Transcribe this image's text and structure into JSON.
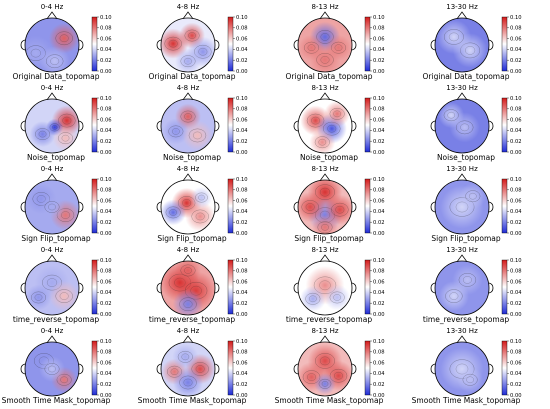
{
  "figure": {
    "bands": [
      "0-4 Hz",
      "4-8 Hz",
      "8-13 Hz",
      "13-30 Hz"
    ],
    "rows": [
      "Original Data_topomap",
      "Noise_topomap",
      "Sign Flip_topomap",
      "time_reverse_topomap",
      "Smooth Time Mask_topomap"
    ],
    "colorbar": {
      "ticks": [
        "0.00",
        "0.02",
        "0.04",
        "0.06",
        "0.08",
        "0.10"
      ],
      "colormap": "bwr",
      "low_color": "#1f2bd6",
      "mid_color": "#ffffff",
      "high_color": "#d41b1b"
    }
  },
  "chart_data": {
    "type": "heatmap",
    "title": "",
    "xlabel": "",
    "ylabel": "",
    "subtype": "eeg-topomap-grid",
    "columns": [
      "0-4 Hz",
      "4-8 Hz",
      "8-13 Hz",
      "13-30 Hz"
    ],
    "rows": [
      "Original Data_topomap",
      "Noise_topomap",
      "Sign Flip_topomap",
      "time_reverse_topomap",
      "Smooth Time Mask_topomap"
    ],
    "zlim": [
      0.0,
      0.1
    ],
    "colorbar_ticks": [
      0.0,
      0.02,
      0.04,
      0.06,
      0.08,
      0.1
    ],
    "mean_level": [
      [
        0.025,
        0.045,
        0.07,
        0.02
      ],
      [
        0.04,
        0.035,
        0.05,
        0.02
      ],
      [
        0.03,
        0.05,
        0.065,
        0.025
      ],
      [
        0.035,
        0.07,
        0.05,
        0.025
      ],
      [
        0.025,
        0.04,
        0.065,
        0.025
      ]
    ]
  }
}
